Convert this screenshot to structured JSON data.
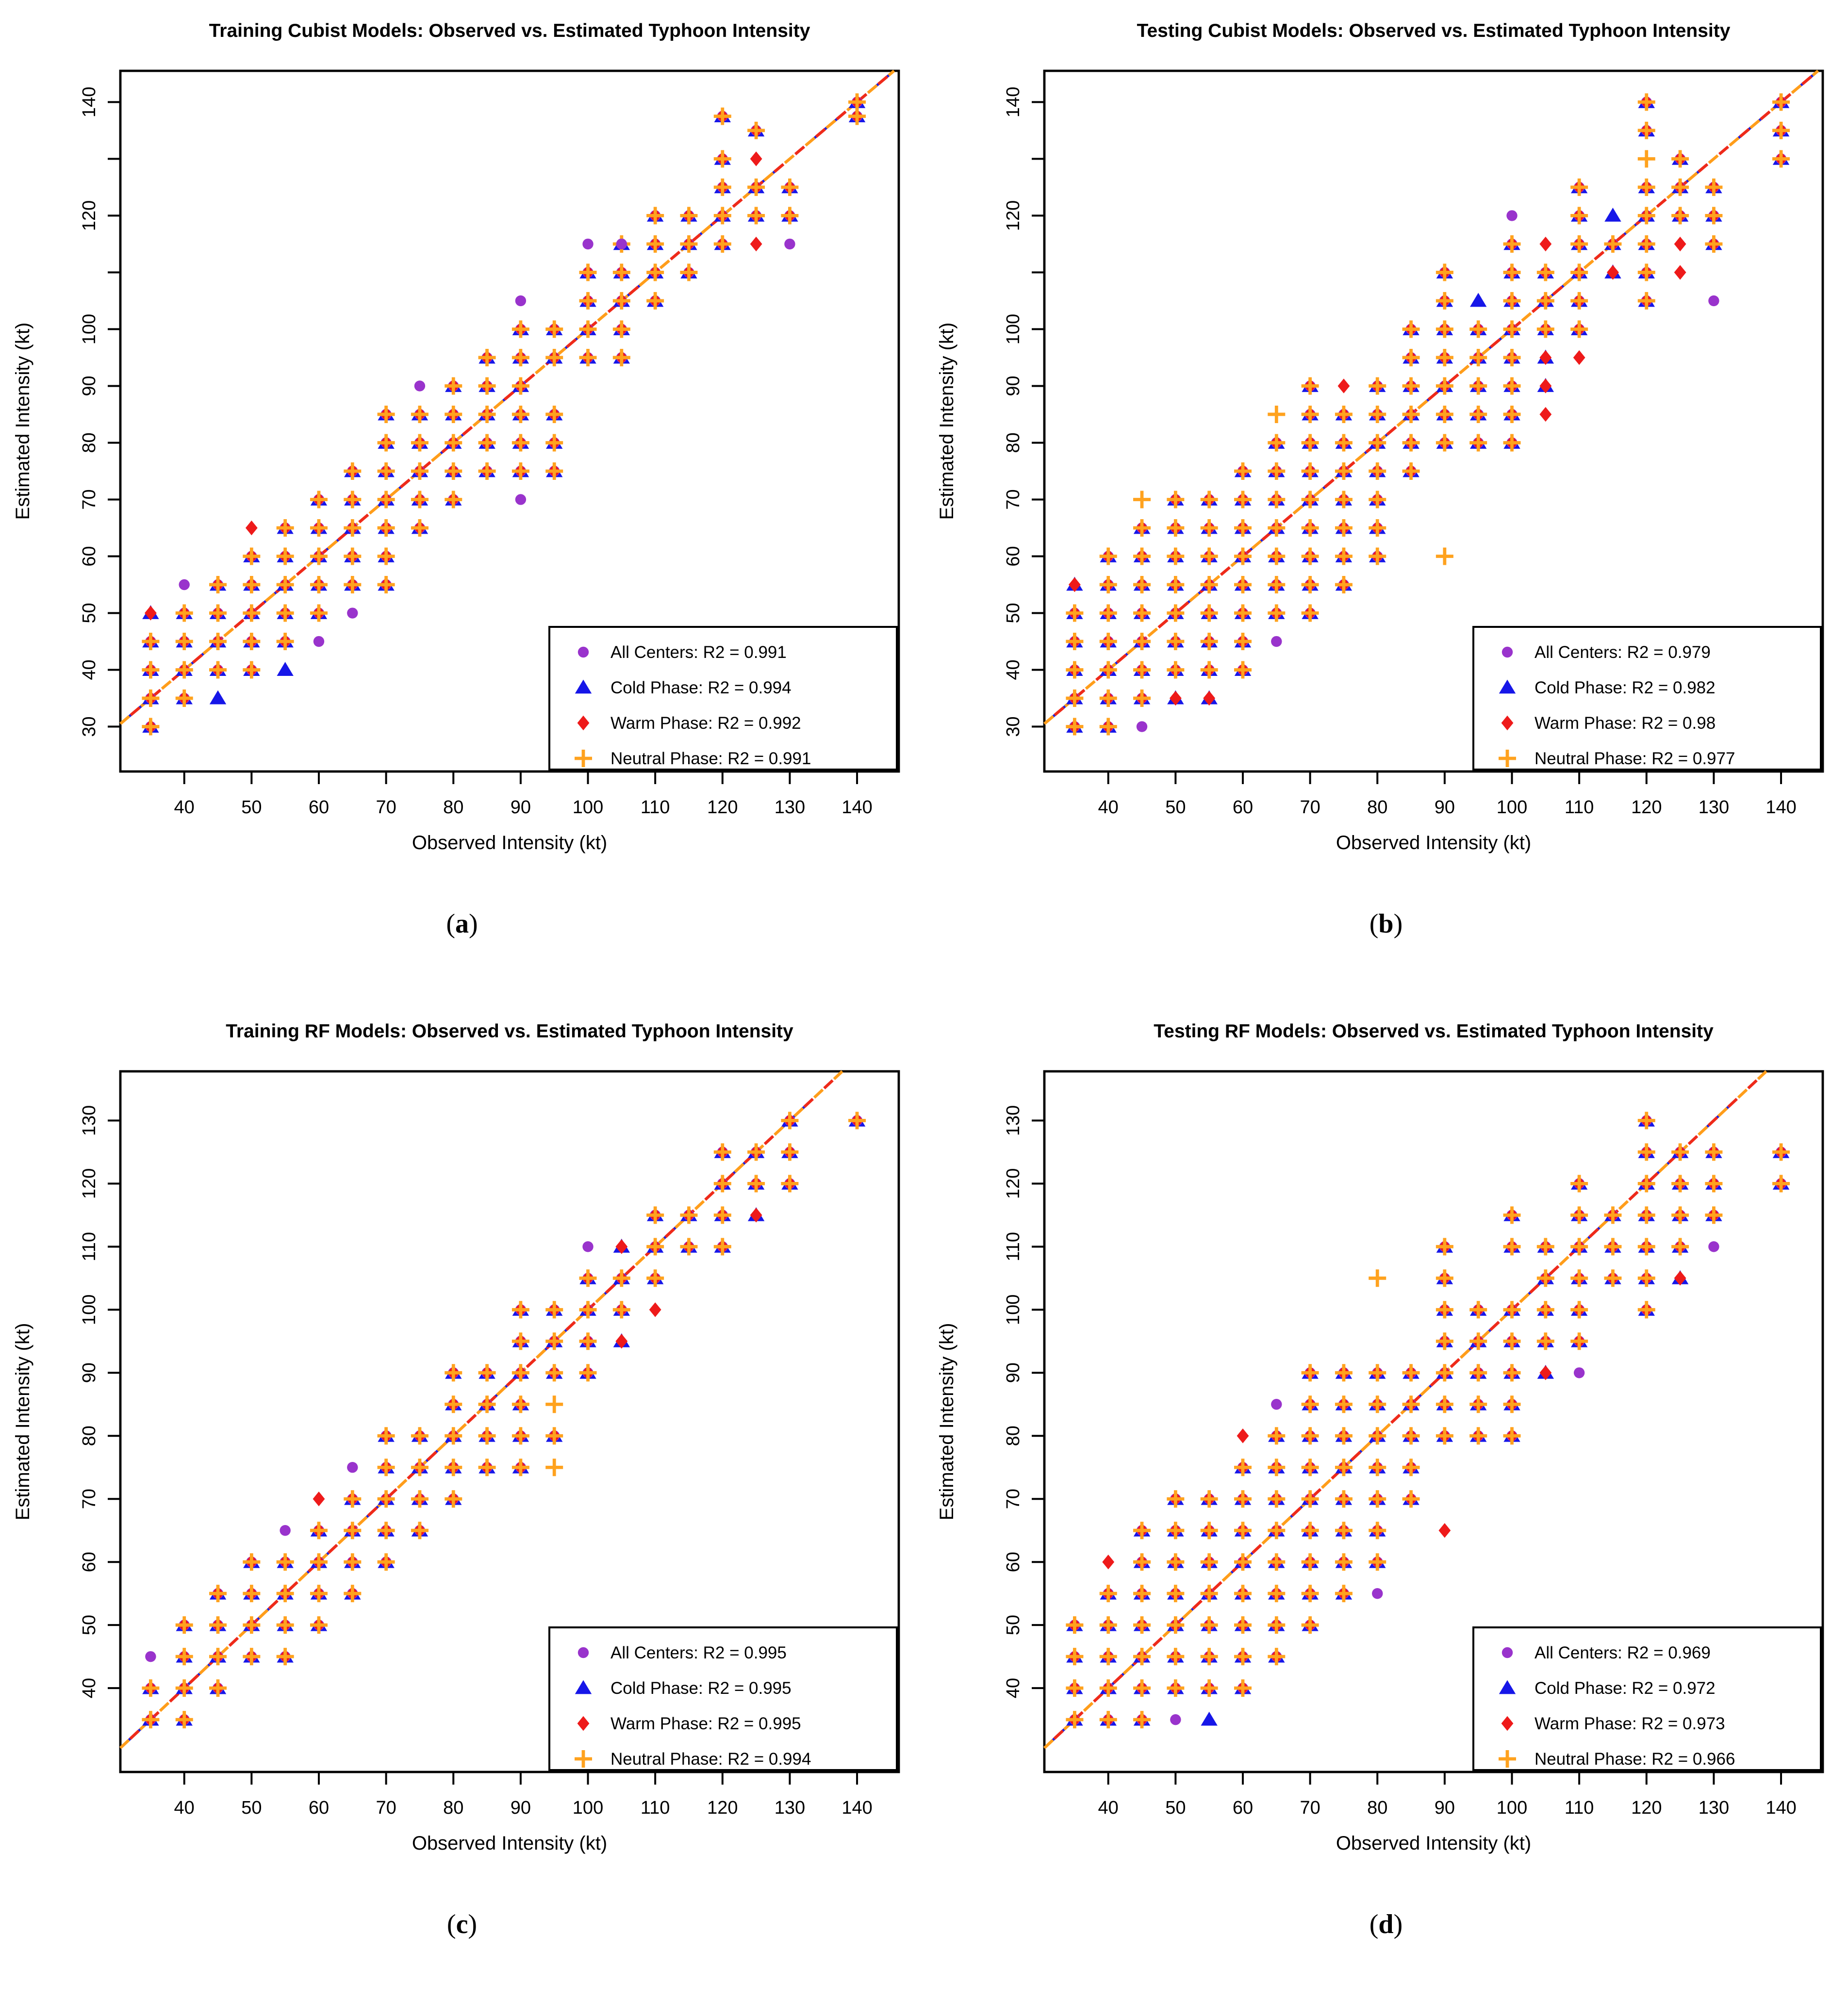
{
  "figure": {
    "captions": [
      {
        "pre": "(",
        "letter": "a",
        "post": ")"
      },
      {
        "pre": "(",
        "letter": "b",
        "post": ")"
      },
      {
        "pre": "(",
        "letter": "c",
        "post": ")"
      },
      {
        "pre": "(",
        "letter": "d",
        "post": ")"
      }
    ]
  },
  "colors": {
    "all_centers_purple": "#9933CC",
    "cold_phase_blue": "#1616E8",
    "warm_phase_red": "#EE1A1A",
    "neutral_phase_orange": "#FFA21E",
    "axis_black": "#000000",
    "fit_line_red": "#EE2A1A",
    "fit_line_orange": "#FF9D1A",
    "fit_line_blue": "#2222DD"
  },
  "series_defs": [
    {
      "key": "all",
      "name": "All Centers",
      "marker": "circle",
      "color": "#9933CC"
    },
    {
      "key": "cold",
      "name": "Cold Phase",
      "marker": "triangle",
      "color": "#1616E8"
    },
    {
      "key": "warm",
      "name": "Warm Phase",
      "marker": "diamond",
      "color": "#EE1A1A"
    },
    {
      "key": "neutral",
      "name": "Neutral Phase",
      "marker": "plus",
      "color": "#FFA21E"
    }
  ],
  "chart_data": [
    {
      "type": "scatter",
      "title": "Training Cubist Models: Observed vs. Estimated Typhoon Intensity",
      "xlabel": "Observed Intensity (kt)",
      "ylabel": "Estimated Intensity (kt)",
      "xticks": [
        40,
        50,
        60,
        70,
        80,
        90,
        100,
        110,
        120,
        130,
        140
      ],
      "yticks": [
        30,
        40,
        50,
        60,
        70,
        80,
        90,
        100,
        110,
        120,
        130,
        140
      ],
      "ytick_labels_hidden": [
        110,
        130
      ],
      "xlim": [
        30.5,
        146.2
      ],
      "ylim": [
        22.1,
        145.5
      ],
      "identity_line": true,
      "legend": [
        "All Centers: R2 = 0.991",
        "Cold Phase: R2 = 0.994",
        "Warm Phase: R2 = 0.992",
        "Neutral Phase: R2 = 0.991"
      ],
      "points": {
        "stacked": {
          "35": [
            30,
            35,
            40,
            45
          ],
          "40": [
            35,
            40,
            45,
            50
          ],
          "45": [
            40,
            45,
            50,
            55
          ],
          "50": [
            40,
            45,
            50,
            55,
            60
          ],
          "55": [
            45,
            50,
            55,
            60,
            65
          ],
          "60": [
            50,
            55,
            60,
            65,
            70
          ],
          "65": [
            55,
            60,
            65,
            70,
            75
          ],
          "70": [
            55,
            60,
            65,
            70,
            75,
            80,
            85
          ],
          "75": [
            65,
            70,
            75,
            80,
            85
          ],
          "80": [
            70,
            75,
            80,
            85,
            90
          ],
          "85": [
            75,
            80,
            85,
            90,
            95
          ],
          "90": [
            75,
            80,
            85,
            90,
            95,
            100
          ],
          "95": [
            75,
            80,
            85,
            95,
            100
          ],
          "100": [
            95,
            100,
            105,
            110
          ],
          "105": [
            95,
            100,
            105,
            110,
            115
          ],
          "110": [
            105,
            110,
            115,
            120
          ],
          "115": [
            110,
            115,
            120
          ],
          "120": [
            115,
            120,
            125,
            130,
            137.5
          ],
          "125": [
            120,
            125,
            135
          ],
          "130": [
            120,
            125
          ],
          "140": [
            137.5,
            140
          ]
        },
        "all": [
          [
            40,
            55
          ],
          [
            60,
            45
          ],
          [
            65,
            50
          ],
          [
            75,
            90
          ],
          [
            90,
            70
          ],
          [
            90,
            105
          ],
          [
            100,
            115
          ],
          [
            105,
            115
          ],
          [
            130,
            115
          ]
        ],
        "cold": [
          [
            45,
            35
          ],
          [
            55,
            40
          ]
        ],
        "warm": [
          [
            50,
            65
          ],
          [
            125,
            115
          ],
          [
            125,
            130
          ]
        ],
        "cold_warm": [
          [
            35,
            50
          ]
        ],
        "neutral": []
      }
    },
    {
      "type": "scatter",
      "title": "Testing Cubist Models: Observed vs. Estimated Typhoon Intensity",
      "xlabel": "Observed Intensity (kt)",
      "ylabel": "Estimated Intensity (kt)",
      "xticks": [
        40,
        50,
        60,
        70,
        80,
        90,
        100,
        110,
        120,
        130,
        140
      ],
      "yticks": [
        30,
        40,
        50,
        60,
        70,
        80,
        90,
        100,
        110,
        120,
        130,
        140
      ],
      "ytick_labels_hidden": [
        110,
        130
      ],
      "xlim": [
        30.5,
        146.2
      ],
      "ylim": [
        22.1,
        145.5
      ],
      "identity_line": true,
      "legend": [
        "All Centers: R2 = 0.979",
        "Cold Phase: R2 = 0.982",
        "Warm Phase: R2 = 0.98",
        "Neutral Phase: R2 = 0.977"
      ],
      "points": {
        "stacked": {
          "35": [
            30,
            35,
            40,
            45,
            50
          ],
          "40": [
            30,
            35,
            40,
            45,
            50,
            55,
            60
          ],
          "45": [
            35,
            40,
            45,
            50,
            55,
            60,
            65
          ],
          "50": [
            40,
            45,
            50,
            55,
            60,
            65,
            70
          ],
          "55": [
            40,
            45,
            50,
            55,
            60,
            65,
            70
          ],
          "60": [
            40,
            45,
            50,
            55,
            60,
            65,
            70,
            75
          ],
          "65": [
            50,
            55,
            60,
            65,
            70,
            75,
            80
          ],
          "70": [
            50,
            55,
            60,
            65,
            70,
            75,
            80,
            85,
            90
          ],
          "75": [
            55,
            60,
            65,
            70,
            75,
            80,
            85
          ],
          "80": [
            60,
            65,
            70,
            75,
            80,
            85,
            90
          ],
          "85": [
            75,
            80,
            85,
            90,
            95,
            100
          ],
          "90": [
            80,
            85,
            90,
            95,
            100,
            105,
            110
          ],
          "95": [
            80,
            85,
            90,
            95,
            100
          ],
          "100": [
            80,
            85,
            90,
            95,
            100,
            105,
            110,
            115
          ],
          "105": [
            100,
            105,
            110
          ],
          "110": [
            100,
            105,
            110,
            115,
            120,
            125
          ],
          "115": [
            115
          ],
          "120": [
            105,
            110,
            115,
            120,
            125,
            135,
            140
          ],
          "125": [
            120,
            125,
            130
          ],
          "130": [
            115,
            120,
            125
          ],
          "140": [
            130,
            135,
            140
          ]
        },
        "all": [
          [
            45,
            30
          ],
          [
            65,
            45
          ],
          [
            100,
            120
          ],
          [
            130,
            105
          ]
        ],
        "cold": [
          [
            95,
            105
          ],
          [
            115,
            120
          ]
        ],
        "warm": [
          [
            75,
            90
          ],
          [
            105,
            85
          ],
          [
            105,
            115
          ],
          [
            110,
            95
          ],
          [
            125,
            110
          ],
          [
            125,
            115
          ]
        ],
        "cold_warm": [
          [
            35,
            55
          ],
          [
            50,
            35
          ],
          [
            55,
            35
          ],
          [
            105,
            90
          ],
          [
            105,
            95
          ],
          [
            115,
            110
          ]
        ],
        "neutral": [
          [
            45,
            70
          ],
          [
            65,
            85
          ],
          [
            90,
            60
          ],
          [
            120,
            130
          ]
        ]
      }
    },
    {
      "type": "scatter",
      "title": "Training RF Models: Observed vs. Estimated Typhoon Intensity",
      "xlabel": "Observed Intensity (kt)",
      "ylabel": "Estimated Intensity (kt)",
      "xticks": [
        40,
        50,
        60,
        70,
        80,
        90,
        100,
        110,
        120,
        130,
        140
      ],
      "yticks": [
        40,
        50,
        60,
        70,
        80,
        90,
        100,
        110,
        120,
        130
      ],
      "ytick_labels_hidden": [],
      "xlim": [
        30.5,
        146.2
      ],
      "ylim": [
        26.7,
        137.8
      ],
      "identity_line": true,
      "legend": [
        "All Centers: R2 = 0.995",
        "Cold Phase: R2 = 0.995",
        "Warm Phase: R2 = 0.995",
        "Neutral Phase: R2 = 0.994"
      ],
      "points": {
        "stacked": {
          "35": [
            35,
            40
          ],
          "40": [
            35,
            40,
            45,
            50
          ],
          "45": [
            40,
            45,
            50,
            55
          ],
          "50": [
            45,
            50,
            55,
            60
          ],
          "55": [
            45,
            50,
            55,
            60
          ],
          "60": [
            50,
            55,
            60,
            65
          ],
          "65": [
            55,
            60,
            65,
            70
          ],
          "70": [
            60,
            65,
            70,
            75,
            80
          ],
          "75": [
            65,
            70,
            75,
            80
          ],
          "80": [
            70,
            75,
            80,
            85,
            90
          ],
          "85": [
            75,
            80,
            85,
            90
          ],
          "90": [
            75,
            80,
            85,
            90,
            95,
            100
          ],
          "95": [
            80,
            90,
            95,
            100
          ],
          "100": [
            90,
            95,
            100,
            105
          ],
          "105": [
            100,
            105
          ],
          "110": [
            105,
            110,
            115
          ],
          "115": [
            110,
            115
          ],
          "120": [
            110,
            115,
            120,
            125
          ],
          "125": [
            120,
            125
          ],
          "130": [
            120,
            125,
            130
          ],
          "140": [
            130
          ]
        },
        "all": [
          [
            35,
            45
          ],
          [
            55,
            65
          ],
          [
            65,
            75
          ],
          [
            100,
            110
          ]
        ],
        "cold": [],
        "warm": [
          [
            60,
            70
          ],
          [
            110,
            100
          ]
        ],
        "cold_warm": [
          [
            105,
            95
          ],
          [
            105,
            110
          ],
          [
            125,
            115
          ]
        ],
        "neutral": [
          [
            95,
            75
          ],
          [
            95,
            85
          ]
        ]
      }
    },
    {
      "type": "scatter",
      "title": "Testing RF Models: Observed vs. Estimated Typhoon Intensity",
      "xlabel": "Observed Intensity (kt)",
      "ylabel": "Estimated Intensity (kt)",
      "xticks": [
        40,
        50,
        60,
        70,
        80,
        90,
        100,
        110,
        120,
        130,
        140
      ],
      "yticks": [
        40,
        50,
        60,
        70,
        80,
        90,
        100,
        110,
        120,
        130
      ],
      "ytick_labels_hidden": [],
      "xlim": [
        30.5,
        146.2
      ],
      "ylim": [
        26.7,
        137.8
      ],
      "identity_line": true,
      "legend": [
        "All Centers: R2 = 0.969",
        "Cold Phase: R2 = 0.972",
        "Warm Phase: R2 = 0.973",
        "Neutral Phase: R2 = 0.966"
      ],
      "points": {
        "stacked": {
          "35": [
            35,
            40,
            45,
            50
          ],
          "40": [
            35,
            40,
            45,
            50,
            55
          ],
          "45": [
            35,
            40,
            45,
            50,
            55,
            60,
            65
          ],
          "50": [
            40,
            45,
            50,
            55,
            60,
            65,
            70
          ],
          "55": [
            40,
            45,
            50,
            55,
            60,
            65,
            70
          ],
          "60": [
            40,
            45,
            50,
            55,
            60,
            65,
            70,
            75
          ],
          "65": [
            45,
            50,
            55,
            60,
            65,
            70,
            75,
            80
          ],
          "70": [
            50,
            55,
            60,
            65,
            70,
            75,
            80,
            85,
            90
          ],
          "75": [
            55,
            60,
            65,
            70,
            75,
            80,
            85,
            90
          ],
          "80": [
            60,
            65,
            70,
            75,
            80,
            85,
            90
          ],
          "85": [
            70,
            75,
            80,
            85,
            90
          ],
          "90": [
            80,
            85,
            90,
            95,
            100,
            105,
            110
          ],
          "95": [
            80,
            85,
            90,
            95,
            100
          ],
          "100": [
            80,
            85,
            90,
            95,
            100,
            110,
            115
          ],
          "105": [
            95,
            100,
            105,
            110
          ],
          "110": [
            95,
            100,
            105,
            110,
            115,
            120
          ],
          "115": [
            105,
            110,
            115
          ],
          "120": [
            100,
            105,
            110,
            115,
            120,
            125,
            130
          ],
          "125": [
            110,
            115,
            120,
            125
          ],
          "130": [
            115,
            120,
            125
          ],
          "140": [
            120,
            125
          ]
        },
        "all": [
          [
            50,
            35
          ],
          [
            65,
            85
          ],
          [
            80,
            55
          ],
          [
            110,
            90
          ],
          [
            130,
            110
          ]
        ],
        "cold": [
          [
            55,
            35
          ]
        ],
        "warm": [
          [
            40,
            60
          ],
          [
            60,
            80
          ],
          [
            90,
            65
          ]
        ],
        "cold_warm": [
          [
            105,
            90
          ],
          [
            125,
            105
          ]
        ],
        "neutral": [
          [
            80,
            105
          ]
        ]
      }
    }
  ]
}
